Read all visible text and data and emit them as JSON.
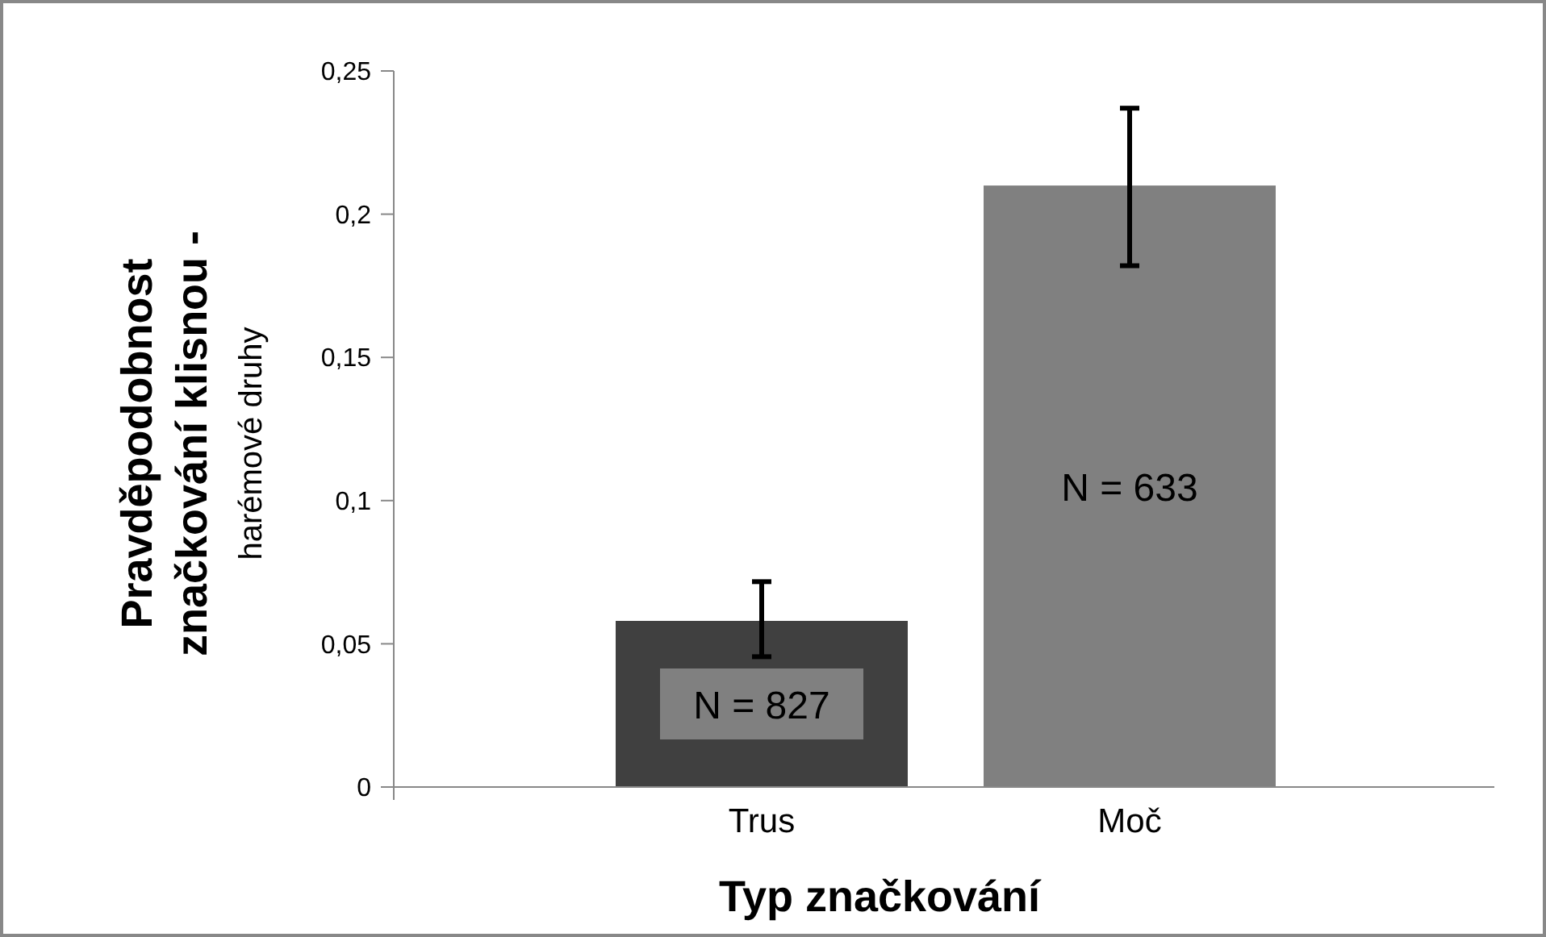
{
  "chart_data": {
    "type": "bar",
    "xlabel": "Typ značkování",
    "ylabel": "Pravděpodobnost\nznačkování klisnou -\nharémové druhy",
    "categories": [
      "Trus",
      "Moč"
    ],
    "values": [
      0.058,
      0.21
    ],
    "colors": [
      "#404040",
      "#808080"
    ],
    "errors": [
      [
        0.0455,
        0.0717
      ],
      [
        0.182,
        0.237
      ]
    ],
    "ylim": [
      0,
      0.25
    ],
    "yticks": [
      {
        "value": 0,
        "label": "0"
      },
      {
        "value": 0.05,
        "label": "0,05"
      },
      {
        "value": 0.1,
        "label": "0,1"
      },
      {
        "value": 0.15,
        "label": "0,15"
      },
      {
        "value": 0.2,
        "label": "0,2"
      },
      {
        "value": 0.25,
        "label": "0,25"
      }
    ],
    "annotations": [
      "N = 827",
      "N = 633"
    ],
    "grid": false
  }
}
